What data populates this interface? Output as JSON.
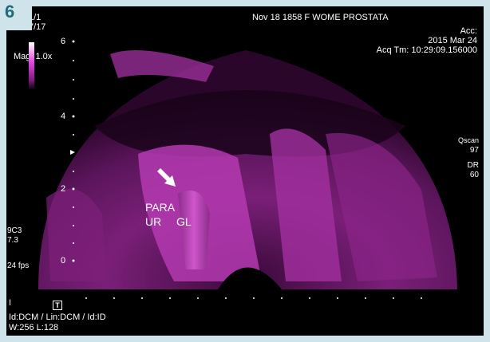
{
  "panel_number": "6",
  "top_left": {
    "frame": "1/1",
    "index": "7/17",
    "magnification": "Mag: 1.0x"
  },
  "header": {
    "title": "Nov 18 1858 F WOME PROSTATA"
  },
  "top_right": {
    "acc": "Acc:",
    "date": "2015 Mar 24",
    "acq_time": "Acq Tm: 10:29:09.156000"
  },
  "depth_scale": [
    "6",
    "4",
    "2",
    "0"
  ],
  "right_panel": {
    "mode": "Qscan",
    "mode_value": "97",
    "dr_label": "DR",
    "dr_value": "60"
  },
  "left_panel": {
    "probe": "9C3",
    "freq": "7.3",
    "fps": "24 fps"
  },
  "annotations": {
    "line1": "PARA",
    "line2_a": "UR",
    "line2_b": "GL"
  },
  "bottom_left": {
    "cursor": "I",
    "t_marker": "T",
    "ids": "Id:DCM / Lin:DCM / Id:ID",
    "window": "W:256  L:128"
  },
  "colors": {
    "accent": "#1f6b7c",
    "tissue": "#c63fc4",
    "background": "#cfe3ea"
  }
}
